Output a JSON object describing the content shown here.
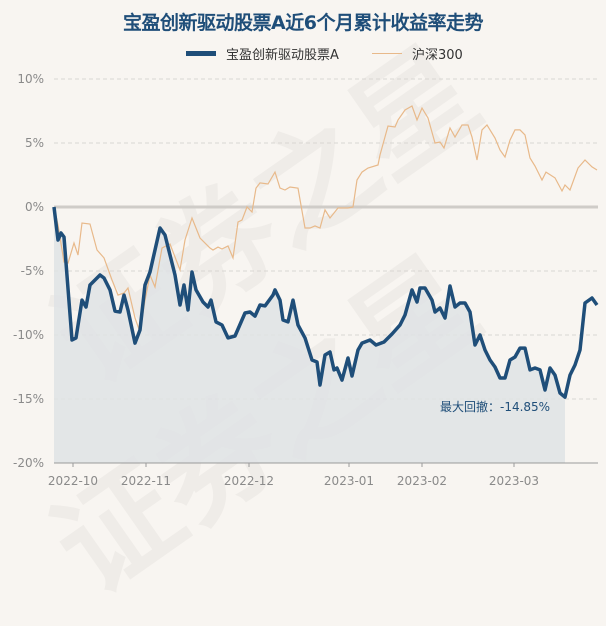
{
  "title": "宝盈创新驱动股票A近6个月累计收益率走势",
  "legend": [
    {
      "label": "宝盈创新驱动股票A",
      "color": "#1f4e79"
    },
    {
      "label": "沪深300",
      "color": "#e8b98a"
    }
  ],
  "annotation": "最大回撤：-14.85%",
  "watermark": "证券之星",
  "chart_data": {
    "type": "line",
    "title": "宝盈创新驱动股票A近6个月累计收益率走势",
    "xlabel": "",
    "ylabel": "",
    "ylim": [
      -20,
      10
    ],
    "yticks": [
      "10%",
      "5%",
      "0%",
      "-5%",
      "-10%",
      "-15%",
      "-20%"
    ],
    "ytick_values": [
      10,
      5,
      0,
      -5,
      -10,
      -15,
      -20
    ],
    "xlim": [
      0,
      544
    ],
    "xticks": [
      {
        "label": "2022-10",
        "pos": 19
      },
      {
        "label": "2022-11",
        "pos": 92
      },
      {
        "label": "2022-12",
        "pos": 195
      },
      {
        "label": "2023-01",
        "pos": 295
      },
      {
        "label": "2023-02",
        "pos": 368
      },
      {
        "label": "2023-03",
        "pos": 460
      }
    ],
    "grid": "horizontal dashed",
    "legend_position": "top",
    "max_drawdown": {
      "value": -14.85,
      "pos": 511
    },
    "series": [
      {
        "name": "宝盈创新驱动股票A",
        "color": "#1f4e79",
        "x": [
          0,
          4,
          7,
          10,
          18,
          22,
          28,
          32,
          36,
          46,
          50,
          56,
          61,
          66,
          70,
          74,
          81,
          86,
          91,
          96,
          106,
          111,
          121,
          126,
          130,
          134,
          138,
          142,
          149,
          154,
          157,
          162,
          168,
          174,
          181,
          191,
          196,
          201,
          206,
          211,
          219,
          221,
          226,
          229,
          234,
          239,
          244,
          251,
          258,
          263,
          266,
          271,
          276,
          280,
          283,
          288,
          294,
          298,
          304,
          308,
          316,
          322,
          330,
          338,
          346,
          351,
          358,
          363,
          366,
          371,
          378,
          381,
          386,
          391,
          396,
          401,
          406,
          411,
          416,
          421,
          426,
          431,
          436,
          441,
          446,
          451,
          456,
          461,
          466,
          471,
          476,
          481,
          486,
          491,
          496,
          501,
          506,
          511,
          516,
          521,
          526,
          531,
          538,
          543
        ],
        "values": [
          0,
          -2.58,
          -2.03,
          -2.34,
          -10.39,
          -10.23,
          -7.27,
          -7.81,
          -6.09,
          -5.31,
          -5.55,
          -6.48,
          -8.13,
          -8.2,
          -6.88,
          -8.05,
          -10.63,
          -9.61,
          -6.09,
          -5.08,
          -1.64,
          -2.19,
          -5.31,
          -7.66,
          -6.09,
          -8.05,
          -5.08,
          -6.48,
          -7.42,
          -7.81,
          -7.27,
          -8.98,
          -9.22,
          -10.23,
          -10.08,
          -8.28,
          -8.2,
          -8.52,
          -7.66,
          -7.73,
          -6.88,
          -6.48,
          -7.27,
          -8.83,
          -8.98,
          -7.27,
          -9.22,
          -10.23,
          -11.95,
          -12.11,
          -13.91,
          -11.56,
          -11.33,
          -12.73,
          -12.58,
          -13.52,
          -11.8,
          -13.2,
          -11.17,
          -10.63,
          -10.39,
          -10.78,
          -10.55,
          -9.92,
          -9.22,
          -8.44,
          -6.48,
          -7.42,
          -6.33,
          -6.33,
          -7.27,
          -8.2,
          -7.89,
          -8.67,
          -6.17,
          -7.81,
          -7.5,
          -7.5,
          -8.2,
          -10.78,
          -10.0,
          -11.17,
          -11.95,
          -12.5,
          -13.36,
          -13.36,
          -11.95,
          -11.72,
          -11.02,
          -11.02,
          -12.73,
          -12.58,
          -12.73,
          -14.3,
          -12.58,
          -13.13,
          -14.53,
          -14.85,
          -13.13,
          -12.34,
          -11.17,
          -7.5,
          -7.11,
          -7.66
        ]
      },
      {
        "name": "沪深300",
        "color": "#e8b98a",
        "x": [
          0,
          4,
          10,
          14,
          20,
          24,
          28,
          36,
          43,
          50,
          58,
          64,
          70,
          74,
          81,
          86,
          91,
          96,
          101,
          108,
          116,
          126,
          131,
          138,
          146,
          156,
          159,
          164,
          168,
          174,
          179,
          184,
          188,
          193,
          198,
          202,
          206,
          214,
          221,
          226,
          231,
          236,
          244,
          251,
          256,
          261,
          266,
          271,
          276,
          284,
          294,
          299,
          303,
          308,
          314,
          324,
          326,
          334,
          341,
          344,
          351,
          358,
          363,
          368,
          374,
          381,
          386,
          390,
          396,
          401,
          408,
          414,
          418,
          423,
          428,
          433,
          441,
          446,
          451,
          456,
          461,
          466,
          471,
          476,
          481,
          488,
          492,
          501,
          508,
          511,
          516,
          524,
          531,
          538,
          543
        ],
        "values": [
          0,
          -1.4,
          -4.3,
          -4.38,
          -2.81,
          -3.75,
          -1.25,
          -1.33,
          -3.36,
          -3.98,
          -5.7,
          -6.88,
          -6.72,
          -6.33,
          -8.67,
          -9.77,
          -7.27,
          -5.31,
          -6.25,
          -3.2,
          -2.89,
          -4.92,
          -2.58,
          -0.86,
          -2.42,
          -3.2,
          -3.36,
          -3.13,
          -3.28,
          -3.05,
          -3.98,
          -1.17,
          -1.02,
          0,
          -0.39,
          1.48,
          1.88,
          1.8,
          2.73,
          1.48,
          1.33,
          1.56,
          1.48,
          -1.64,
          -1.64,
          -1.48,
          -1.64,
          -0.23,
          -0.86,
          -0.08,
          -0.08,
          0,
          2.11,
          2.73,
          3.05,
          3.28,
          4.06,
          6.33,
          6.25,
          6.8,
          7.58,
          7.89,
          6.8,
          7.73,
          6.95,
          5.0,
          5.08,
          4.61,
          6.17,
          5.47,
          6.41,
          6.41,
          5.47,
          3.67,
          6.02,
          6.41,
          5.39,
          4.45,
          3.91,
          5.23,
          6.02,
          6.02,
          5.63,
          3.83,
          3.2,
          2.11,
          2.73,
          2.27,
          1.25,
          1.72,
          1.33,
          3.05,
          3.67,
          3.13,
          2.89
        ]
      }
    ]
  }
}
